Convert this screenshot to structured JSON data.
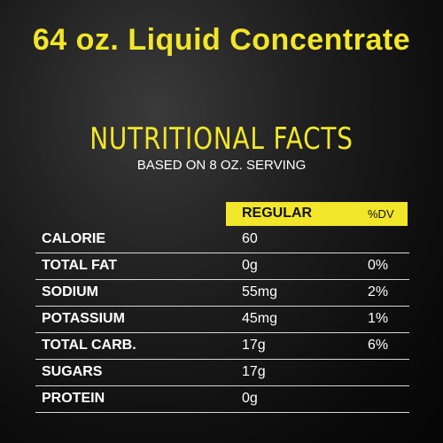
{
  "header": {
    "title": "64 oz. Liquid Concentrate",
    "subtitle": "NUTRITIONAL FACTS",
    "note": "BASED ON 8 OZ. SERVING"
  },
  "table": {
    "columns": [
      "REGULAR",
      "%DV"
    ],
    "rows": [
      [
        "CALORIE",
        "60"
      ],
      [
        "TOTAL FAT",
        "0g",
        "0%"
      ],
      [
        "SODIUM",
        "55mg",
        "2%"
      ],
      [
        "POTASSIUM",
        "45mg",
        "1%"
      ],
      [
        "TOTAL CARB.",
        "17g",
        "6%"
      ],
      [
        "SUGARS",
        "17g"
      ],
      [
        "PROTEIN",
        "0g"
      ]
    ]
  }
}
